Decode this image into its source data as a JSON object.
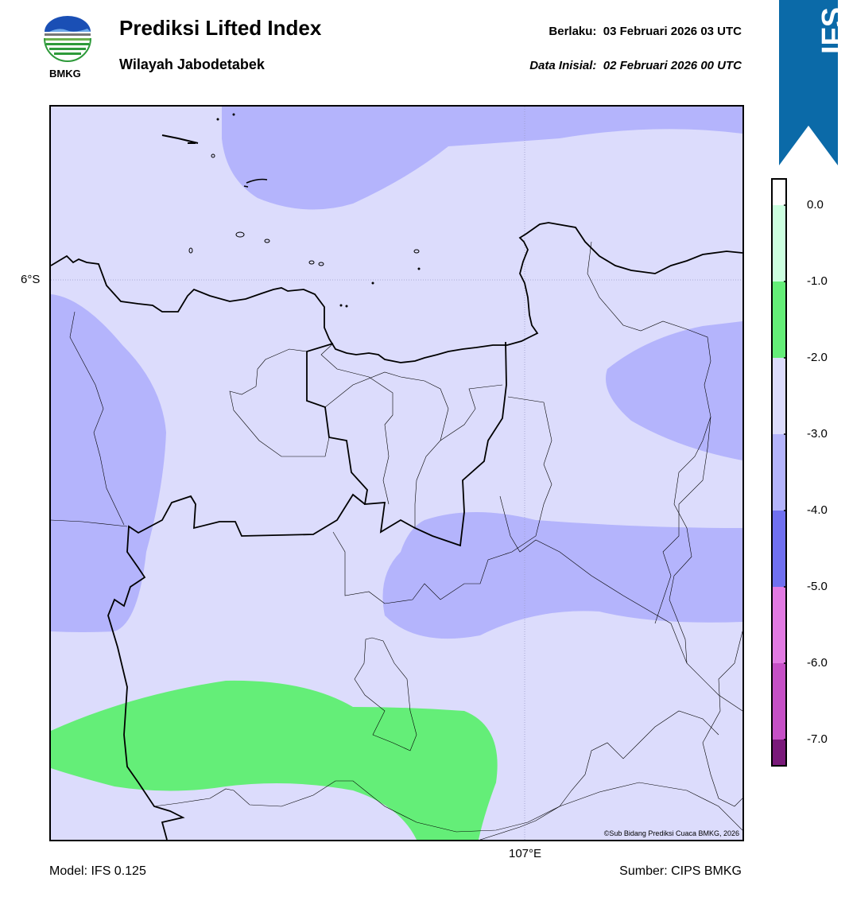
{
  "header": {
    "title": "Prediksi Lifted Index",
    "subtitle": "Wilayah Jabodetabek",
    "valid_label": "Berlaku:  03 Februari 2026 03 UTC",
    "init_label": "Data Inisial:  02 Februari 2026 00 UTC",
    "logo_text": "BMKG"
  },
  "badge": {
    "text": "IFS",
    "color": "#0b6aa8"
  },
  "map": {
    "lat_label": "6°S",
    "lon_label": "107°E",
    "copyright": "©Sub Bidang Prediksi Cuaca BMKG, 2026",
    "background_color": "#dcdcfc"
  },
  "colorbar": {
    "ticks": [
      "0.0",
      "-1.0",
      "-2.0",
      "-3.0",
      "-4.0",
      "-5.0",
      "-6.0",
      "-7.0"
    ],
    "colors": [
      "#ccffe0",
      "#b2ffc6",
      "#64ee78",
      "#dcdcfc",
      "#b4b4fc",
      "#7070f0",
      "#e27ae2",
      "#c650c6",
      "#a02ca0",
      "#7a1a7a"
    ]
  },
  "footer": {
    "model": "Model: IFS 0.125",
    "source": "Sumber: CIPS BMKG"
  }
}
